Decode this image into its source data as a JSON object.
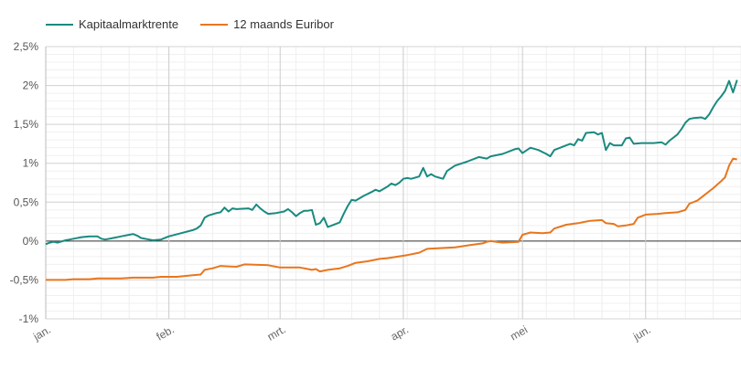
{
  "chart_data": {
    "type": "line",
    "title": "",
    "xlabel": "",
    "ylabel": "",
    "ylim": [
      -1,
      2.5
    ],
    "y_ticks": [
      {
        "value": -1,
        "label": "-1%"
      },
      {
        "value": -0.5,
        "label": "-0,5%"
      },
      {
        "value": 0,
        "label": "0%"
      },
      {
        "value": 0.5,
        "label": "0,5%"
      },
      {
        "value": 1,
        "label": "1%"
      },
      {
        "value": 1.5,
        "label": "1,5%"
      },
      {
        "value": 2,
        "label": "2%"
      },
      {
        "value": 2.5,
        "label": "2,5%"
      }
    ],
    "x_range": [
      "2022-01-01",
      "2022-06-25"
    ],
    "x_ticks": [
      {
        "date": "2022-01-01",
        "label": "jan."
      },
      {
        "date": "2022-02-01",
        "label": "feb."
      },
      {
        "date": "2022-03-01",
        "label": "mrt."
      },
      {
        "date": "2022-04-01",
        "label": "apr."
      },
      {
        "date": "2022-05-01",
        "label": "mei"
      },
      {
        "date": "2022-06-01",
        "label": "jun."
      }
    ],
    "grid": true,
    "legend_position": "top-left",
    "series": [
      {
        "name": "Kapitaalmarktrente",
        "color": "#1a8a80",
        "points": [
          [
            "2022-01-01",
            -0.04
          ],
          [
            "2022-01-02",
            -0.02
          ],
          [
            "2022-01-03",
            -0.01
          ],
          [
            "2022-01-04",
            -0.02
          ],
          [
            "2022-01-06",
            0.01
          ],
          [
            "2022-01-07",
            0.02
          ],
          [
            "2022-01-08",
            0.03
          ],
          [
            "2022-01-10",
            0.05
          ],
          [
            "2022-01-12",
            0.06
          ],
          [
            "2022-01-14",
            0.06
          ],
          [
            "2022-01-15",
            0.03
          ],
          [
            "2022-01-16",
            0.02
          ],
          [
            "2022-01-18",
            0.04
          ],
          [
            "2022-01-20",
            0.06
          ],
          [
            "2022-01-22",
            0.08
          ],
          [
            "2022-01-23",
            0.09
          ],
          [
            "2022-01-24",
            0.07
          ],
          [
            "2022-01-25",
            0.04
          ],
          [
            "2022-01-27",
            0.02
          ],
          [
            "2022-01-28",
            0.01
          ],
          [
            "2022-01-30",
            0.02
          ],
          [
            "2022-02-01",
            0.06
          ],
          [
            "2022-02-04",
            0.1
          ],
          [
            "2022-02-07",
            0.14
          ],
          [
            "2022-02-08",
            0.16
          ],
          [
            "2022-02-09",
            0.2
          ],
          [
            "2022-02-10",
            0.3
          ],
          [
            "2022-02-11",
            0.33
          ],
          [
            "2022-02-13",
            0.36
          ],
          [
            "2022-02-14",
            0.37
          ],
          [
            "2022-02-15",
            0.43
          ],
          [
            "2022-02-16",
            0.38
          ],
          [
            "2022-02-17",
            0.42
          ],
          [
            "2022-02-18",
            0.41
          ],
          [
            "2022-02-21",
            0.42
          ],
          [
            "2022-02-22",
            0.4
          ],
          [
            "2022-02-23",
            0.47
          ],
          [
            "2022-02-24",
            0.42
          ],
          [
            "2022-02-25",
            0.38
          ],
          [
            "2022-02-26",
            0.35
          ],
          [
            "2022-02-28",
            0.36
          ],
          [
            "2022-03-02",
            0.38
          ],
          [
            "2022-03-03",
            0.41
          ],
          [
            "2022-03-04",
            0.37
          ],
          [
            "2022-03-05",
            0.32
          ],
          [
            "2022-03-06",
            0.36
          ],
          [
            "2022-03-07",
            0.39
          ],
          [
            "2022-03-08",
            0.39
          ],
          [
            "2022-03-09",
            0.4
          ],
          [
            "2022-03-10",
            0.21
          ],
          [
            "2022-03-11",
            0.23
          ],
          [
            "2022-03-12",
            0.3
          ],
          [
            "2022-03-13",
            0.18
          ],
          [
            "2022-03-14",
            0.2
          ],
          [
            "2022-03-16",
            0.24
          ],
          [
            "2022-03-17",
            0.35
          ],
          [
            "2022-03-18",
            0.45
          ],
          [
            "2022-03-19",
            0.53
          ],
          [
            "2022-03-20",
            0.52
          ],
          [
            "2022-03-21",
            0.55
          ],
          [
            "2022-03-22",
            0.58
          ],
          [
            "2022-03-24",
            0.63
          ],
          [
            "2022-03-25",
            0.66
          ],
          [
            "2022-03-26",
            0.64
          ],
          [
            "2022-03-28",
            0.7
          ],
          [
            "2022-03-29",
            0.74
          ],
          [
            "2022-03-30",
            0.72
          ],
          [
            "2022-03-31",
            0.75
          ],
          [
            "2022-04-01",
            0.8
          ],
          [
            "2022-04-02",
            0.81
          ],
          [
            "2022-04-03",
            0.8
          ],
          [
            "2022-04-05",
            0.83
          ],
          [
            "2022-04-06",
            0.94
          ],
          [
            "2022-04-07",
            0.83
          ],
          [
            "2022-04-08",
            0.86
          ],
          [
            "2022-04-09",
            0.83
          ],
          [
            "2022-04-11",
            0.8
          ],
          [
            "2022-04-12",
            0.9
          ],
          [
            "2022-04-14",
            0.97
          ],
          [
            "2022-04-17",
            1.02
          ],
          [
            "2022-04-20",
            1.08
          ],
          [
            "2022-04-22",
            1.06
          ],
          [
            "2022-04-23",
            1.09
          ],
          [
            "2022-04-26",
            1.12
          ],
          [
            "2022-04-29",
            1.18
          ],
          [
            "2022-04-30",
            1.19
          ],
          [
            "2022-05-01",
            1.13
          ],
          [
            "2022-05-03",
            1.2
          ],
          [
            "2022-05-05",
            1.17
          ],
          [
            "2022-05-07",
            1.12
          ],
          [
            "2022-05-08",
            1.09
          ],
          [
            "2022-05-09",
            1.17
          ],
          [
            "2022-05-11",
            1.21
          ],
          [
            "2022-05-13",
            1.25
          ],
          [
            "2022-05-14",
            1.23
          ],
          [
            "2022-05-15",
            1.31
          ],
          [
            "2022-05-16",
            1.29
          ],
          [
            "2022-05-17",
            1.39
          ],
          [
            "2022-05-19",
            1.4
          ],
          [
            "2022-05-20",
            1.37
          ],
          [
            "2022-05-21",
            1.39
          ],
          [
            "2022-05-22",
            1.17
          ],
          [
            "2022-05-23",
            1.26
          ],
          [
            "2022-05-24",
            1.23
          ],
          [
            "2022-05-26",
            1.23
          ],
          [
            "2022-05-27",
            1.32
          ],
          [
            "2022-05-28",
            1.33
          ],
          [
            "2022-05-29",
            1.25
          ],
          [
            "2022-05-31",
            1.26
          ],
          [
            "2022-06-03",
            1.26
          ],
          [
            "2022-06-05",
            1.27
          ],
          [
            "2022-06-06",
            1.24
          ],
          [
            "2022-06-07",
            1.29
          ],
          [
            "2022-06-09",
            1.37
          ],
          [
            "2022-06-10",
            1.44
          ],
          [
            "2022-06-11",
            1.52
          ],
          [
            "2022-06-12",
            1.57
          ],
          [
            "2022-06-13",
            1.58
          ],
          [
            "2022-06-15",
            1.59
          ],
          [
            "2022-06-16",
            1.57
          ],
          [
            "2022-06-17",
            1.63
          ],
          [
            "2022-06-18",
            1.72
          ],
          [
            "2022-06-19",
            1.8
          ],
          [
            "2022-06-20",
            1.86
          ],
          [
            "2022-06-21",
            1.93
          ],
          [
            "2022-06-22",
            2.06
          ],
          [
            "2022-06-23",
            1.91
          ],
          [
            "2022-06-24",
            2.07
          ]
        ]
      },
      {
        "name": "12 maands Euribor",
        "color": "#e8761e",
        "points": [
          [
            "2022-01-01",
            -0.5
          ],
          [
            "2022-01-06",
            -0.5
          ],
          [
            "2022-01-08",
            -0.49
          ],
          [
            "2022-01-12",
            -0.49
          ],
          [
            "2022-01-14",
            -0.48
          ],
          [
            "2022-01-20",
            -0.48
          ],
          [
            "2022-01-23",
            -0.47
          ],
          [
            "2022-01-28",
            -0.47
          ],
          [
            "2022-01-30",
            -0.46
          ],
          [
            "2022-02-03",
            -0.46
          ],
          [
            "2022-02-07",
            -0.44
          ],
          [
            "2022-02-09",
            -0.43
          ],
          [
            "2022-02-10",
            -0.37
          ],
          [
            "2022-02-12",
            -0.35
          ],
          [
            "2022-02-14",
            -0.32
          ],
          [
            "2022-02-18",
            -0.33
          ],
          [
            "2022-02-20",
            -0.3
          ],
          [
            "2022-02-26",
            -0.31
          ],
          [
            "2022-02-28",
            -0.33
          ],
          [
            "2022-03-01",
            -0.34
          ],
          [
            "2022-03-06",
            -0.34
          ],
          [
            "2022-03-08",
            -0.36
          ],
          [
            "2022-03-09",
            -0.37
          ],
          [
            "2022-03-10",
            -0.36
          ],
          [
            "2022-03-11",
            -0.39
          ],
          [
            "2022-03-13",
            -0.37
          ],
          [
            "2022-03-16",
            -0.35
          ],
          [
            "2022-03-18",
            -0.32
          ],
          [
            "2022-03-20",
            -0.28
          ],
          [
            "2022-03-23",
            -0.26
          ],
          [
            "2022-03-26",
            -0.23
          ],
          [
            "2022-03-28",
            -0.22
          ],
          [
            "2022-04-02",
            -0.18
          ],
          [
            "2022-04-05",
            -0.15
          ],
          [
            "2022-04-07",
            -0.1
          ],
          [
            "2022-04-14",
            -0.08
          ],
          [
            "2022-04-18",
            -0.05
          ],
          [
            "2022-04-21",
            -0.03
          ],
          [
            "2022-04-22",
            -0.01
          ],
          [
            "2022-04-23",
            0.0
          ],
          [
            "2022-04-26",
            -0.02
          ],
          [
            "2022-04-30",
            -0.01
          ],
          [
            "2022-05-01",
            0.08
          ],
          [
            "2022-05-03",
            0.11
          ],
          [
            "2022-05-06",
            0.1
          ],
          [
            "2022-05-08",
            0.11
          ],
          [
            "2022-05-09",
            0.16
          ],
          [
            "2022-05-12",
            0.21
          ],
          [
            "2022-05-15",
            0.23
          ],
          [
            "2022-05-18",
            0.26
          ],
          [
            "2022-05-21",
            0.27
          ],
          [
            "2022-05-22",
            0.23
          ],
          [
            "2022-05-24",
            0.22
          ],
          [
            "2022-05-25",
            0.19
          ],
          [
            "2022-05-27",
            0.2
          ],
          [
            "2022-05-29",
            0.22
          ],
          [
            "2022-05-30",
            0.3
          ],
          [
            "2022-06-01",
            0.34
          ],
          [
            "2022-06-04",
            0.35
          ],
          [
            "2022-06-06",
            0.36
          ],
          [
            "2022-06-09",
            0.37
          ],
          [
            "2022-06-11",
            0.4
          ],
          [
            "2022-06-12",
            0.48
          ],
          [
            "2022-06-14",
            0.52
          ],
          [
            "2022-06-15",
            0.56
          ],
          [
            "2022-06-16",
            0.6
          ],
          [
            "2022-06-18",
            0.68
          ],
          [
            "2022-06-20",
            0.77
          ],
          [
            "2022-06-21",
            0.82
          ],
          [
            "2022-06-22",
            0.97
          ],
          [
            "2022-06-23",
            1.06
          ],
          [
            "2022-06-24",
            1.05
          ]
        ]
      }
    ]
  }
}
